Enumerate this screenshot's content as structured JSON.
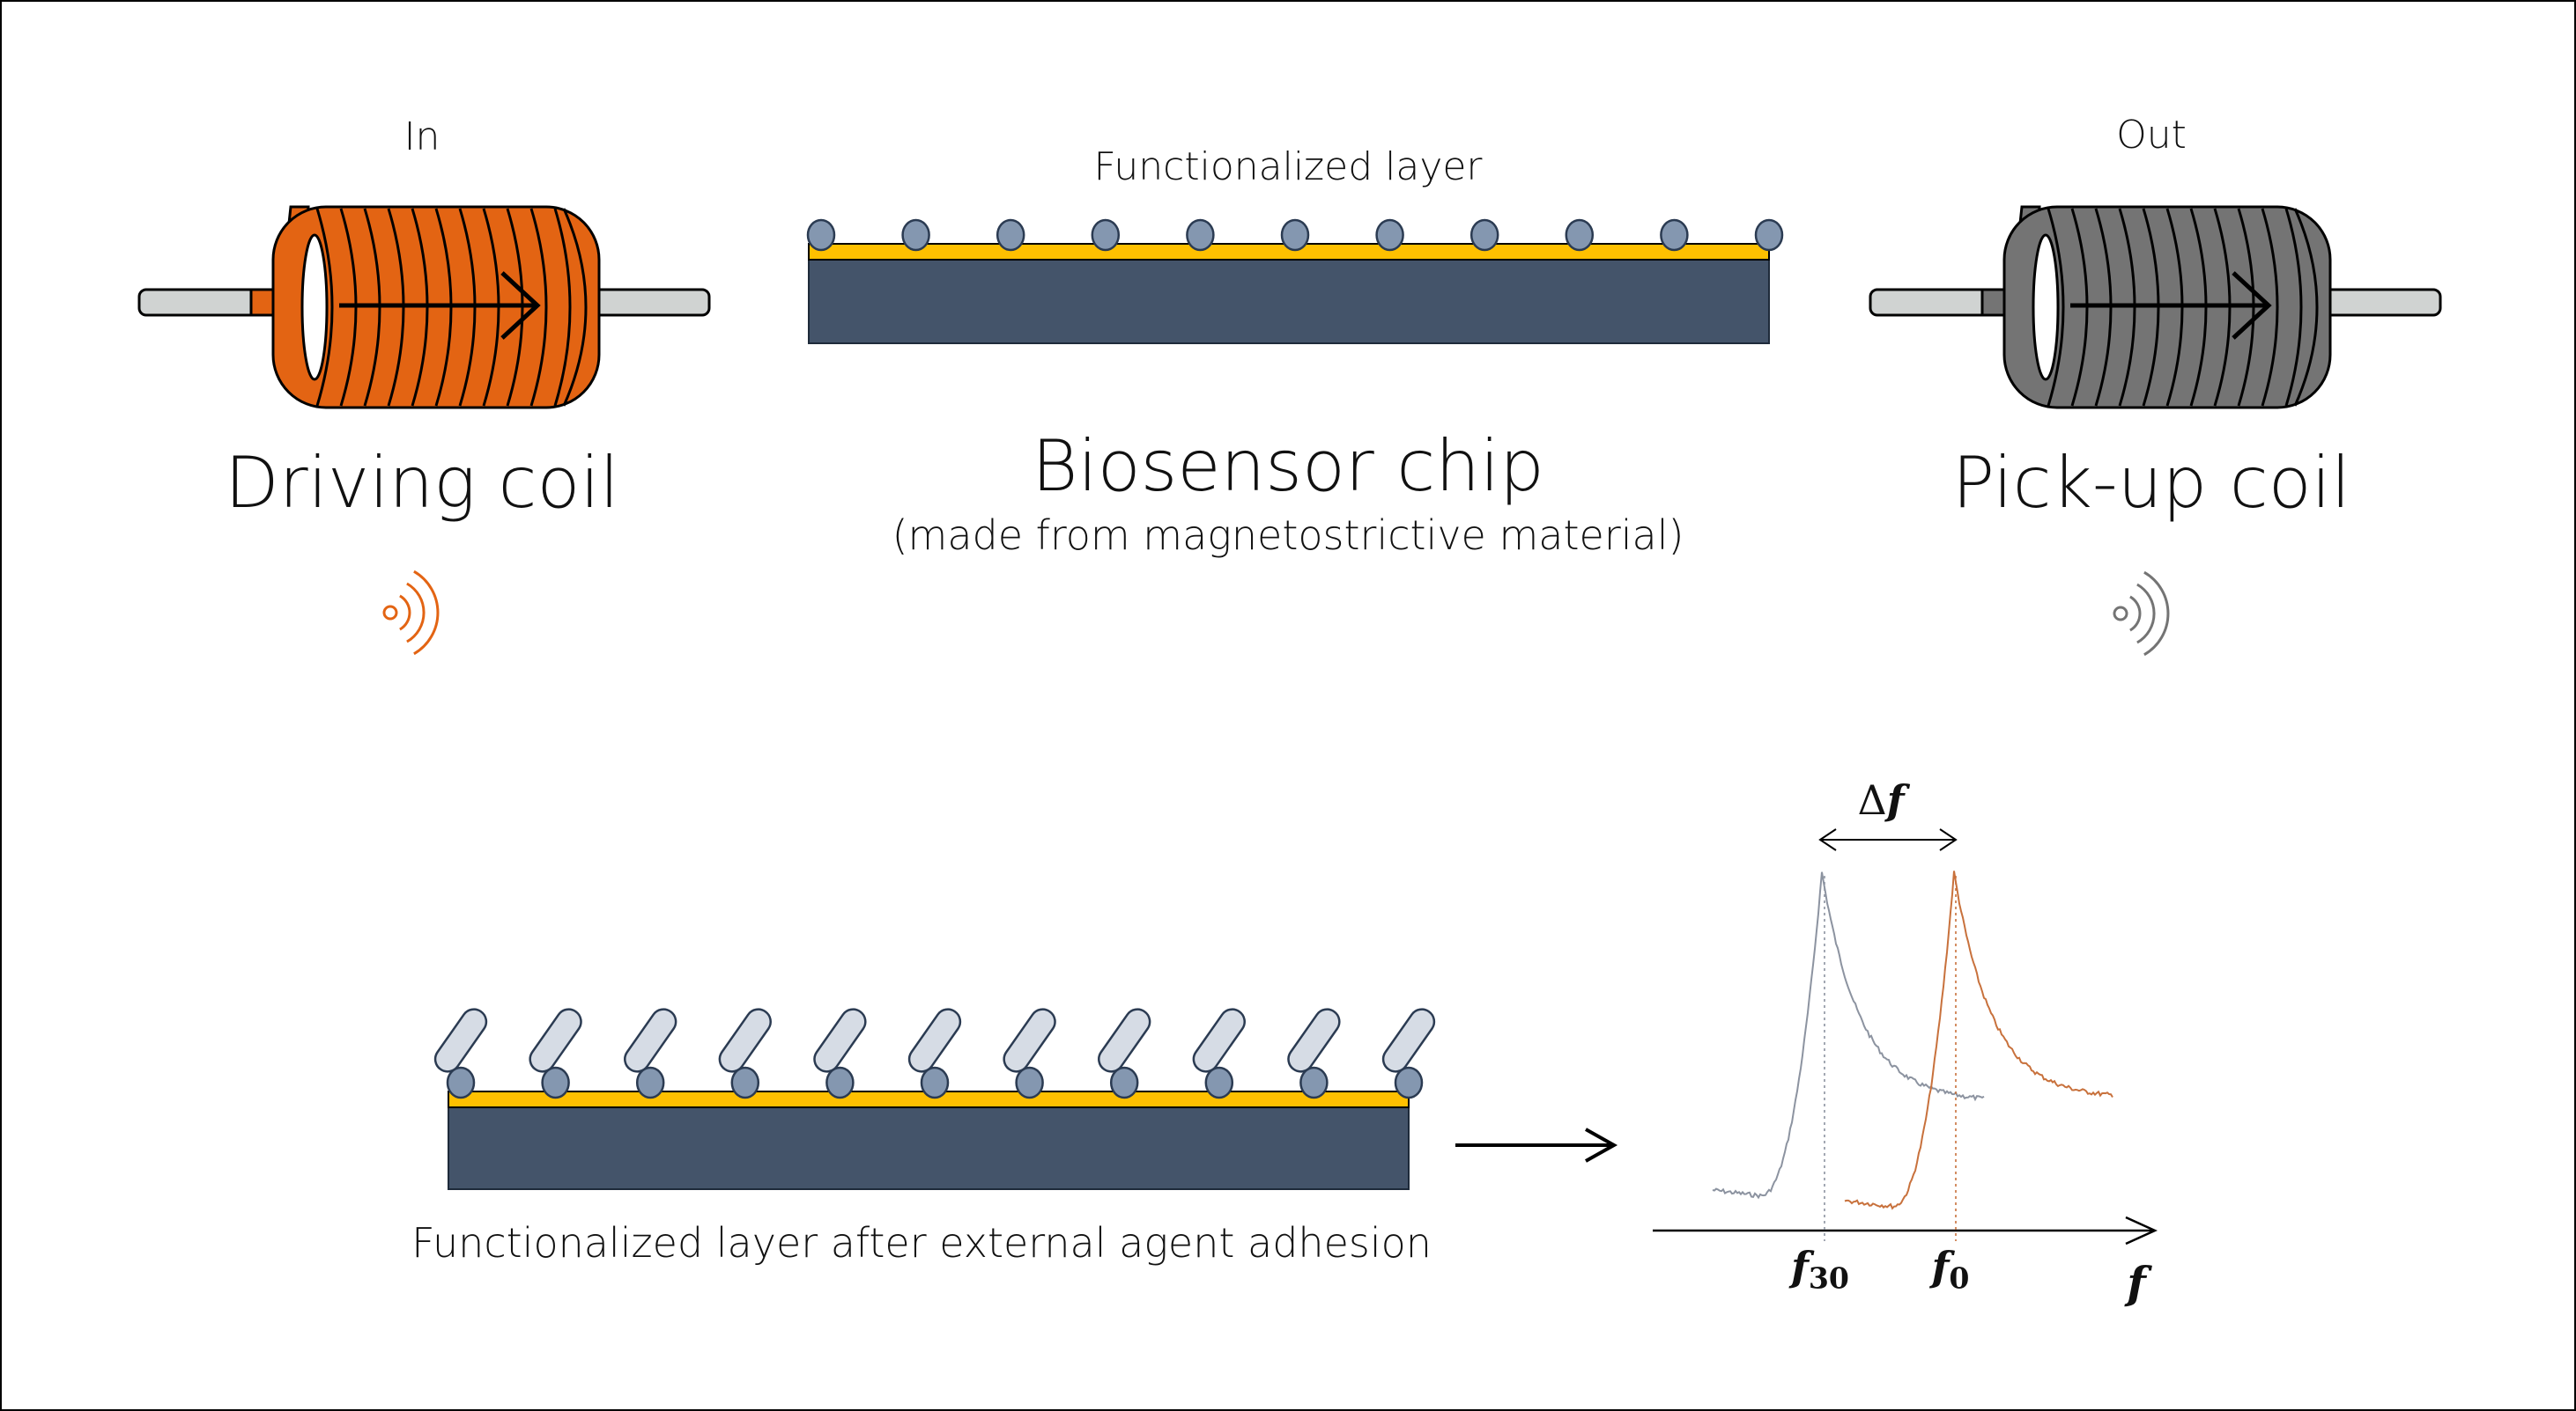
{
  "colors": {
    "driving_coil": "#E36413",
    "pickup_coil": "#747474",
    "chip_body": "#44546A",
    "gold_layer": "#FFC000",
    "bead": "#8497B0",
    "agent": "#D6DCE5",
    "rod": "#D0D3D2",
    "peak_grey": "#8C93A0",
    "peak_orange": "#C8713C"
  },
  "driving_coil": {
    "io_label": "In",
    "title": "Driving coil",
    "icon": "wireless-signal-icon"
  },
  "pickup_coil": {
    "io_label": "Out",
    "title": "Pick-up coil",
    "icon": "wireless-signal-icon"
  },
  "chip": {
    "layer_label": "Functionalized layer",
    "title": "Biosensor chip",
    "subtitle": "(made from magnetostrictive material)"
  },
  "chip_after": {
    "caption": "Functionalized layer after external agent adhesion"
  },
  "spectrum": {
    "shift_symbol": "Δ",
    "freq_symbol": "f",
    "shifted_subscript": "30",
    "initial_subscript": "0"
  },
  "chart_data": {
    "type": "line",
    "xlabel": "f",
    "series": [
      {
        "name": "f30",
        "peak_label": "f30"
      },
      {
        "name": "f0",
        "peak_label": "f0"
      }
    ],
    "annotations": [
      "Δf"
    ]
  }
}
